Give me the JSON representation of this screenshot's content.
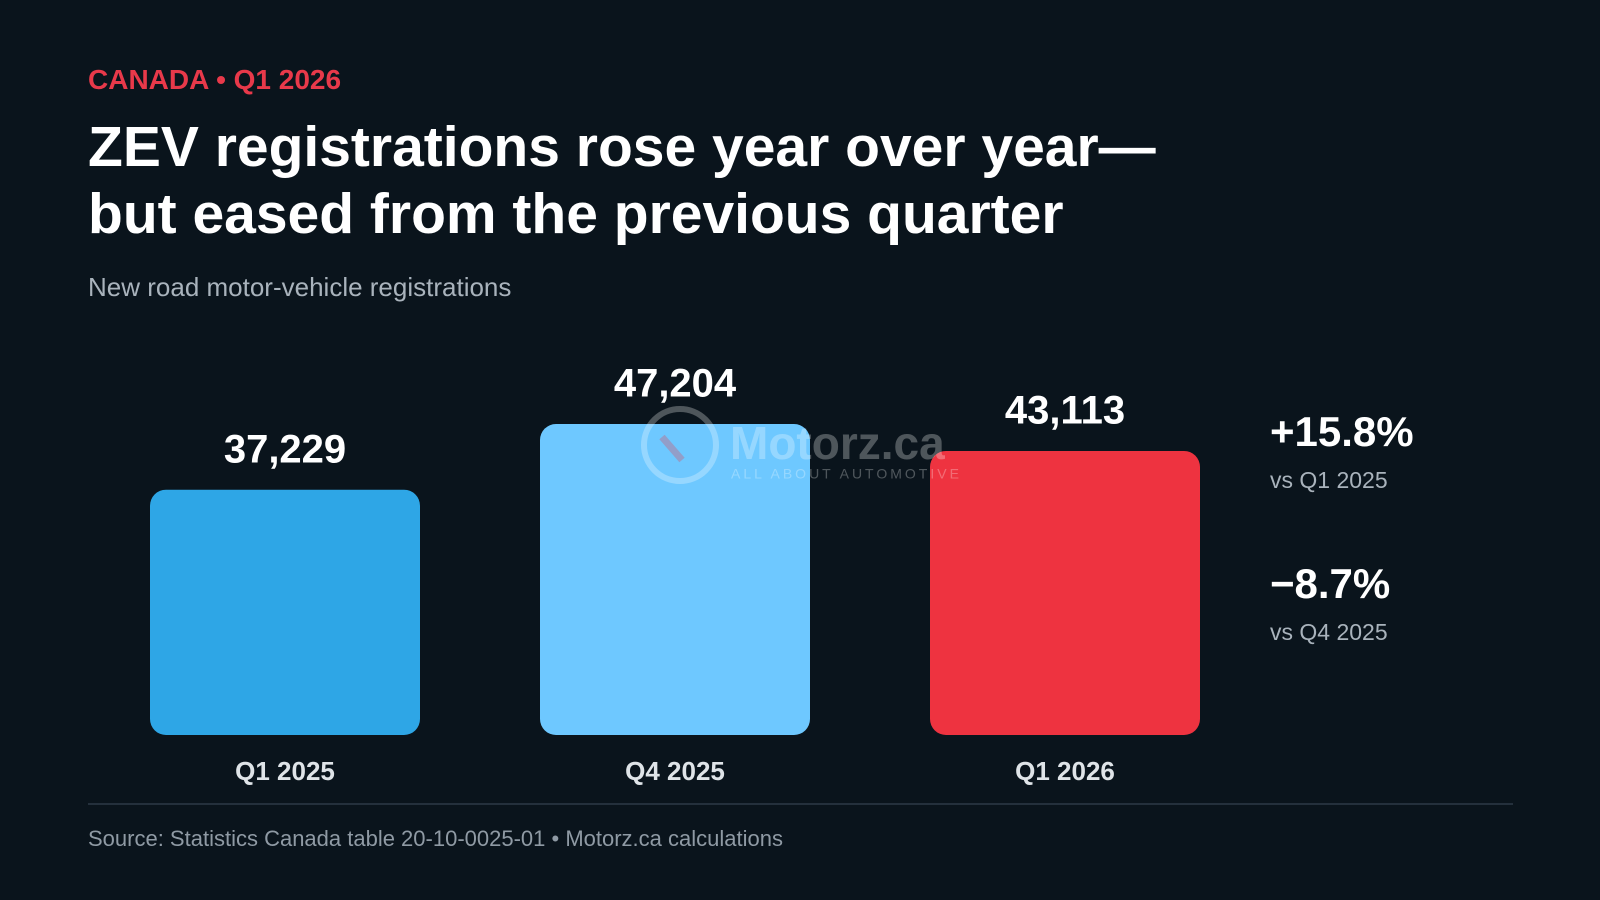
{
  "chart_data": {
    "type": "bar",
    "kicker": "CANADA • Q1 2026",
    "title": "ZEV registrations rose year over year—but eased from the previous quarter",
    "subtitle": "New road motor-vehicle registrations",
    "categories": [
      "Q1 2025",
      "Q4 2025",
      "Q1 2026"
    ],
    "values": [
      37229,
      47204,
      43113
    ],
    "value_labels": [
      "37,229",
      "47,204",
      "43,113"
    ],
    "colors": [
      "#2ea6e6",
      "#6ec8ff",
      "#ee3340"
    ],
    "annotations": [
      {
        "text": "+15.8%",
        "note": "vs Q1 2025"
      },
      {
        "text": "−8.7%",
        "note": "vs Q4 2025"
      }
    ],
    "source": "Source: Statistics Canada table 20-10-0025-01 • Motorz.ca calculations",
    "watermark": {
      "name": "Motorz.ca",
      "tagline": "ALL ABOUT AUTOMOTIVE"
    }
  }
}
